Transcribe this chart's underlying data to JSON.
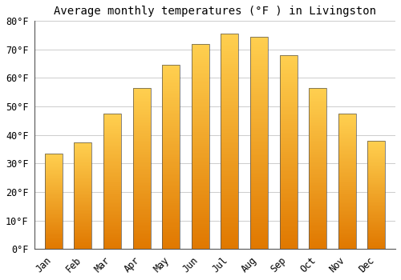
{
  "title": "Average monthly temperatures (°F ) in Livingston",
  "months": [
    "Jan",
    "Feb",
    "Mar",
    "Apr",
    "May",
    "Jun",
    "Jul",
    "Aug",
    "Sep",
    "Oct",
    "Nov",
    "Dec"
  ],
  "values": [
    33.5,
    37.5,
    47.5,
    56.5,
    64.5,
    72,
    75.5,
    74.5,
    68,
    56.5,
    47.5,
    38
  ],
  "bar_color_bottom": "#E07800",
  "bar_color_top": "#FFD050",
  "bar_edge_color": "#555555",
  "background_color": "#FFFFFF",
  "ylim": [
    0,
    80
  ],
  "yticks": [
    0,
    10,
    20,
    30,
    40,
    50,
    60,
    70,
    80
  ],
  "ylabel_suffix": "°F",
  "title_fontsize": 10,
  "tick_fontsize": 8.5,
  "grid_color": "#CCCCCC",
  "bar_width": 0.6
}
